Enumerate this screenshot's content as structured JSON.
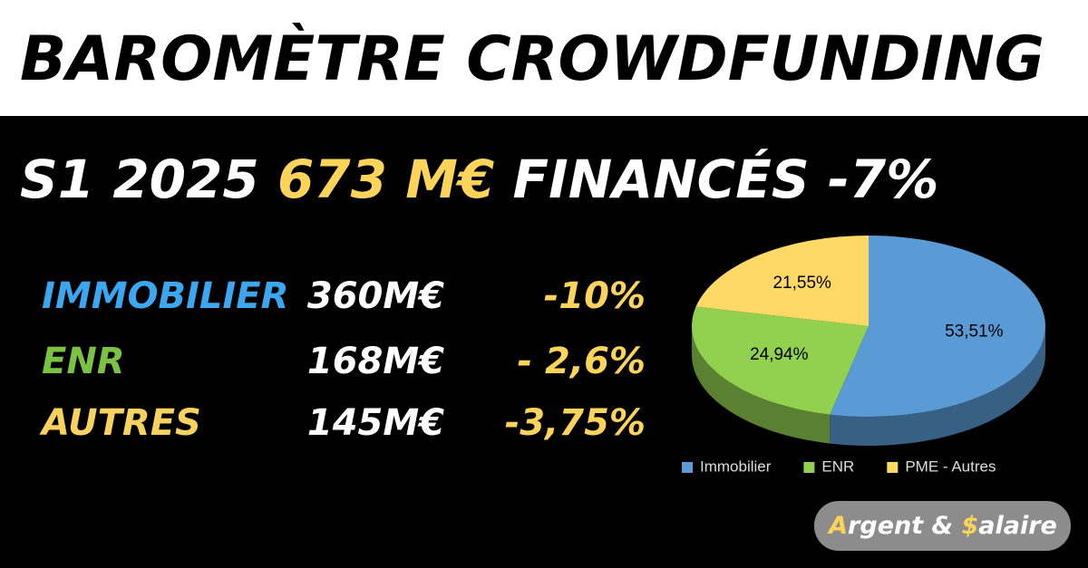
{
  "header": {
    "title": "BAROMÈTRE CROWDFUNDING"
  },
  "headline": {
    "period": "S1 2025",
    "amount": "673 M€",
    "rest": "FINANCÉS -7%"
  },
  "table": {
    "rows": [
      [
        "IMMOBILIER",
        "360M€",
        "-10%"
      ],
      [
        "ENR",
        "168M€",
        "- 2,6%"
      ],
      [
        "AUTRES",
        "145M€",
        "-3,75%"
      ]
    ]
  },
  "chart_data": {
    "type": "pie",
    "categories": [
      "Immobilier",
      "ENR",
      "PME - Autres"
    ],
    "values": [
      53.51,
      24.94,
      21.55
    ],
    "value_labels": [
      "53,51%",
      "24,94%",
      "21,55%"
    ],
    "colors": [
      "#5b9bd5",
      "#92d050",
      "#ffd966"
    ],
    "legend": "bottom"
  },
  "brand": {
    "parts": [
      "A",
      "rgent & ",
      "$",
      "alaire"
    ]
  }
}
